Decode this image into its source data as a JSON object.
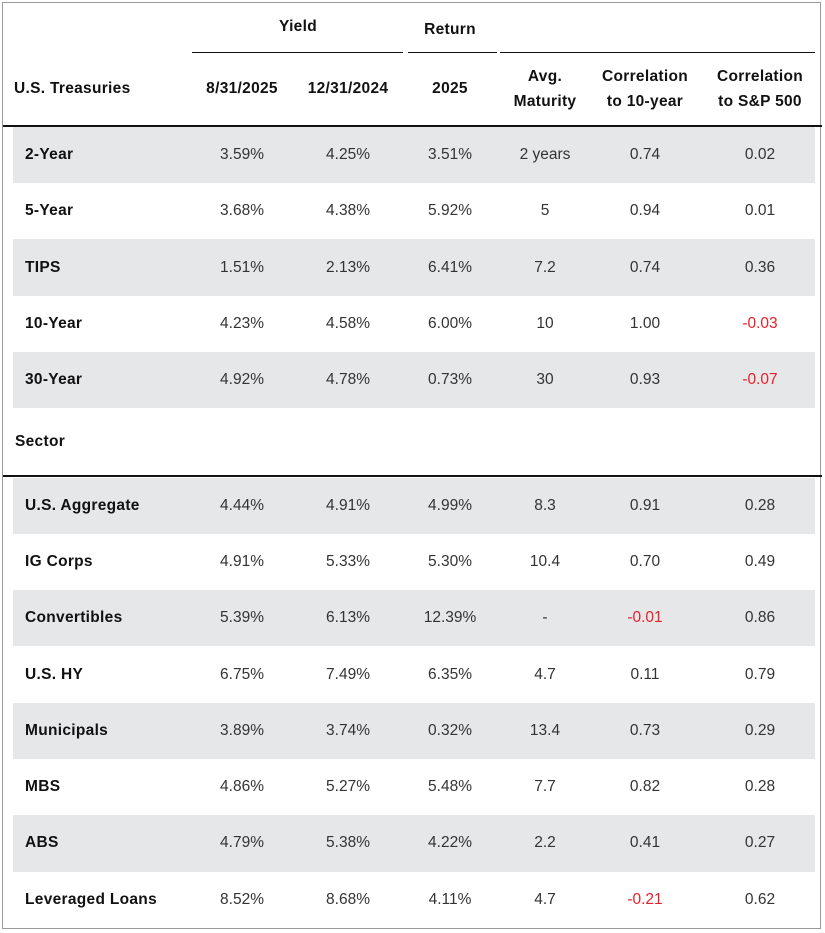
{
  "table": {
    "groups": [
      "Yield",
      "Return"
    ],
    "columns": [
      [
        "8/31/2025"
      ],
      [
        "12/31/2024"
      ],
      [
        "2025"
      ],
      [
        "Avg.",
        "Maturity"
      ],
      [
        "Correlation",
        "to 10-year"
      ],
      [
        "Correlation",
        "to S&P 500"
      ]
    ],
    "sections": [
      {
        "title": "U.S. Treasuries",
        "rows": [
          [
            "2-Year",
            "3.59%",
            "4.25%",
            "3.51%",
            "2 years",
            "0.74",
            "0.02"
          ],
          [
            "5-Year",
            "3.68%",
            "4.38%",
            "5.92%",
            "5",
            "0.94",
            "0.01"
          ],
          [
            "TIPS",
            "1.51%",
            "2.13%",
            "6.41%",
            "7.2",
            "0.74",
            "0.36"
          ],
          [
            "10-Year",
            "4.23%",
            "4.58%",
            "6.00%",
            "10",
            "1.00",
            "-0.03"
          ],
          [
            "30-Year",
            "4.92%",
            "4.78%",
            "0.73%",
            "30",
            "0.93",
            "-0.07"
          ]
        ]
      },
      {
        "title": "Sector",
        "rows": [
          [
            "U.S. Aggregate",
            "4.44%",
            "4.91%",
            "4.99%",
            "8.3",
            "0.91",
            "0.28"
          ],
          [
            "IG Corps",
            "4.91%",
            "5.33%",
            "5.30%",
            "10.4",
            "0.70",
            "0.49"
          ],
          [
            "Convertibles",
            "5.39%",
            "6.13%",
            "12.39%",
            "-",
            "-0.01",
            "0.86"
          ],
          [
            "U.S. HY",
            "6.75%",
            "7.49%",
            "6.35%",
            "4.7",
            "0.11",
            "0.79"
          ],
          [
            "Municipals",
            "3.89%",
            "3.74%",
            "0.32%",
            "13.4",
            "0.73",
            "0.29"
          ],
          [
            "MBS",
            "4.86%",
            "5.27%",
            "5.48%",
            "7.7",
            "0.82",
            "0.28"
          ],
          [
            "ABS",
            "4.79%",
            "5.38%",
            "4.22%",
            "2.2",
            "0.41",
            "0.27"
          ],
          [
            "Leveraged Loans",
            "8.52%",
            "8.68%",
            "4.11%",
            "4.7",
            "-0.21",
            "0.62"
          ]
        ]
      }
    ]
  }
}
